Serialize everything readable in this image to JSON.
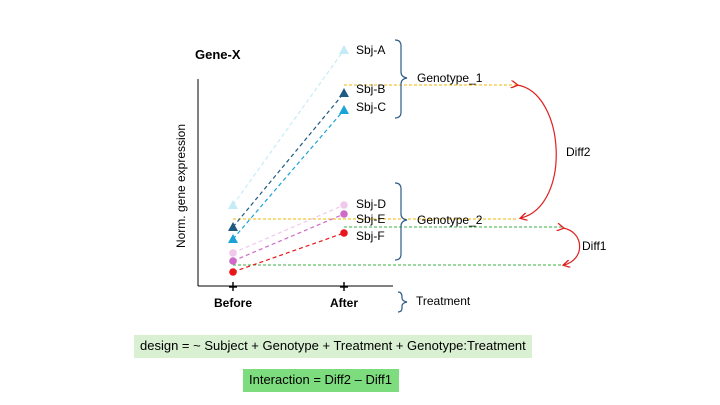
{
  "title": "Gene-X",
  "ylabel": "Norm. gene expression",
  "x_ticks": [
    "Before",
    "After"
  ],
  "treatment_label": "Treatment",
  "genotypes": [
    {
      "label": "Genotype_1",
      "subjects": [
        "Sbj-A",
        "Sbj-B",
        "Sbj-C"
      ]
    },
    {
      "label": "Genotype_2",
      "subjects": [
        "Sbj-D",
        "Sbj-E",
        "Sbj-F"
      ]
    }
  ],
  "diff_labels": {
    "diff1": "Diff1",
    "diff2": "Diff2"
  },
  "design_formula": "design  = ~ Subject + Genotype + Treatment + Genotype:Treatment",
  "interaction_formula": "Interaction = Diff2 – Diff1",
  "colors": {
    "sbj_a": "#c5ecf6",
    "sbj_b": "#1f5a80",
    "sbj_c": "#1aa3d6",
    "sbj_d": "#f0c8ec",
    "sbj_e": "#d06ac8",
    "sbj_f": "#e8161a",
    "mean_line": "#f0b400",
    "diff_line": "#3cb043",
    "arrow": "#e02020",
    "bracket": "#2e5b86",
    "design_bg": "#d9f0d3",
    "interaction_bg": "#7ddc7d"
  }
}
